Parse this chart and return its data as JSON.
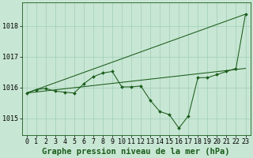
{
  "background_color": "#c8e6d4",
  "grid_color": "#9ecfb8",
  "line_color": "#1a5c1a",
  "marker_color": "#1a5c1a",
  "title": "Graphe pression niveau de la mer (hPa)",
  "xlim": [
    -0.5,
    23.5
  ],
  "ylim": [
    1014.45,
    1018.75
  ],
  "yticks": [
    1015,
    1016,
    1017,
    1018
  ],
  "xticks": [
    0,
    1,
    2,
    3,
    4,
    5,
    6,
    7,
    8,
    9,
    10,
    11,
    12,
    13,
    14,
    15,
    16,
    17,
    18,
    19,
    20,
    21,
    22,
    23
  ],
  "title_fontsize": 7.5,
  "tick_fontsize": 6.0,
  "series_x": [
    0,
    1,
    2,
    3,
    4,
    5,
    6,
    7,
    8,
    9,
    10,
    11,
    12,
    13,
    14,
    15,
    16,
    17,
    18,
    19,
    20,
    21,
    22,
    23
  ],
  "series_y": [
    1015.82,
    1015.93,
    1015.97,
    1015.88,
    1015.85,
    1015.82,
    1016.12,
    1016.35,
    1016.47,
    1016.52,
    1016.02,
    1016.02,
    1016.05,
    1015.58,
    1015.22,
    1015.12,
    1014.68,
    1015.08,
    1016.32,
    1016.32,
    1016.42,
    1016.52,
    1016.62,
    1018.38
  ],
  "ref_line1": [
    [
      0,
      23
    ],
    [
      1015.82,
      1018.38
    ]
  ],
  "ref_line2": [
    [
      0,
      23
    ],
    [
      1015.82,
      1016.62
    ]
  ]
}
